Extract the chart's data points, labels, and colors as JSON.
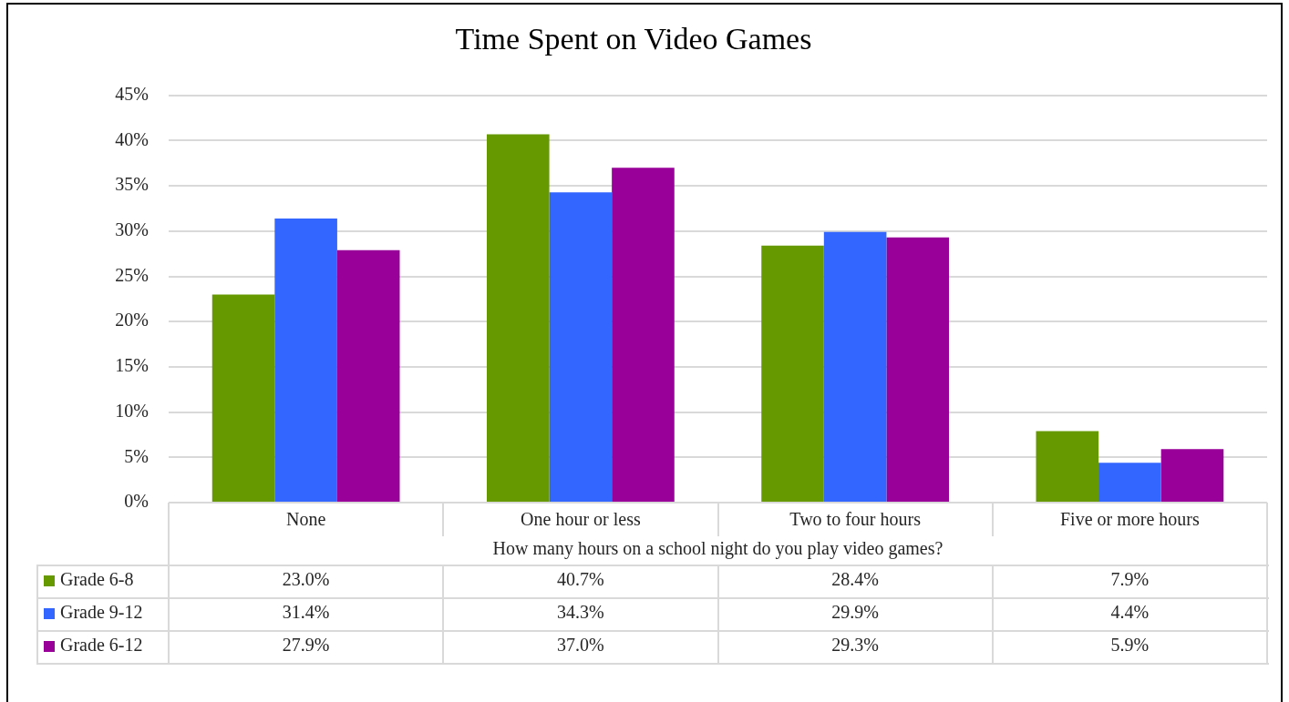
{
  "chart_data": {
    "type": "bar",
    "title": "Time Spent on Video Games",
    "xlabel": "How many hours on a school night do you play video games?",
    "categories": [
      "None",
      "One hour or less",
      "Two to four hours",
      "Five or more hours"
    ],
    "series": [
      {
        "name": "Grade 6-8",
        "color": "#669900",
        "values": [
          23.0,
          40.7,
          28.4,
          7.9
        ],
        "value_labels": [
          "23.0%",
          "40.7%",
          "28.4%",
          "7.9%"
        ]
      },
      {
        "name": "Grade 9-12",
        "color": "#3366ff",
        "values": [
          31.4,
          34.3,
          29.9,
          4.4
        ],
        "value_labels": [
          "31.4%",
          "34.3%",
          "29.9%",
          "4.4%"
        ]
      },
      {
        "name": "Grade 6-12",
        "color": "#990099",
        "values": [
          27.9,
          37.0,
          29.3,
          5.9
        ],
        "value_labels": [
          "27.9%",
          "37.0%",
          "29.3%",
          "5.9%"
        ]
      }
    ],
    "ylim": [
      0,
      45
    ],
    "yticks": [
      {
        "value": 0,
        "label": "0%"
      },
      {
        "value": 5,
        "label": "5%"
      },
      {
        "value": 10,
        "label": "10%"
      },
      {
        "value": 15,
        "label": "15%"
      },
      {
        "value": 20,
        "label": "20%"
      },
      {
        "value": 25,
        "label": "25%"
      },
      {
        "value": 30,
        "label": "30%"
      },
      {
        "value": 35,
        "label": "35%"
      },
      {
        "value": 40,
        "label": "40%"
      },
      {
        "value": 45,
        "label": "45%"
      }
    ],
    "grid": "y",
    "legend": "bottom left"
  }
}
